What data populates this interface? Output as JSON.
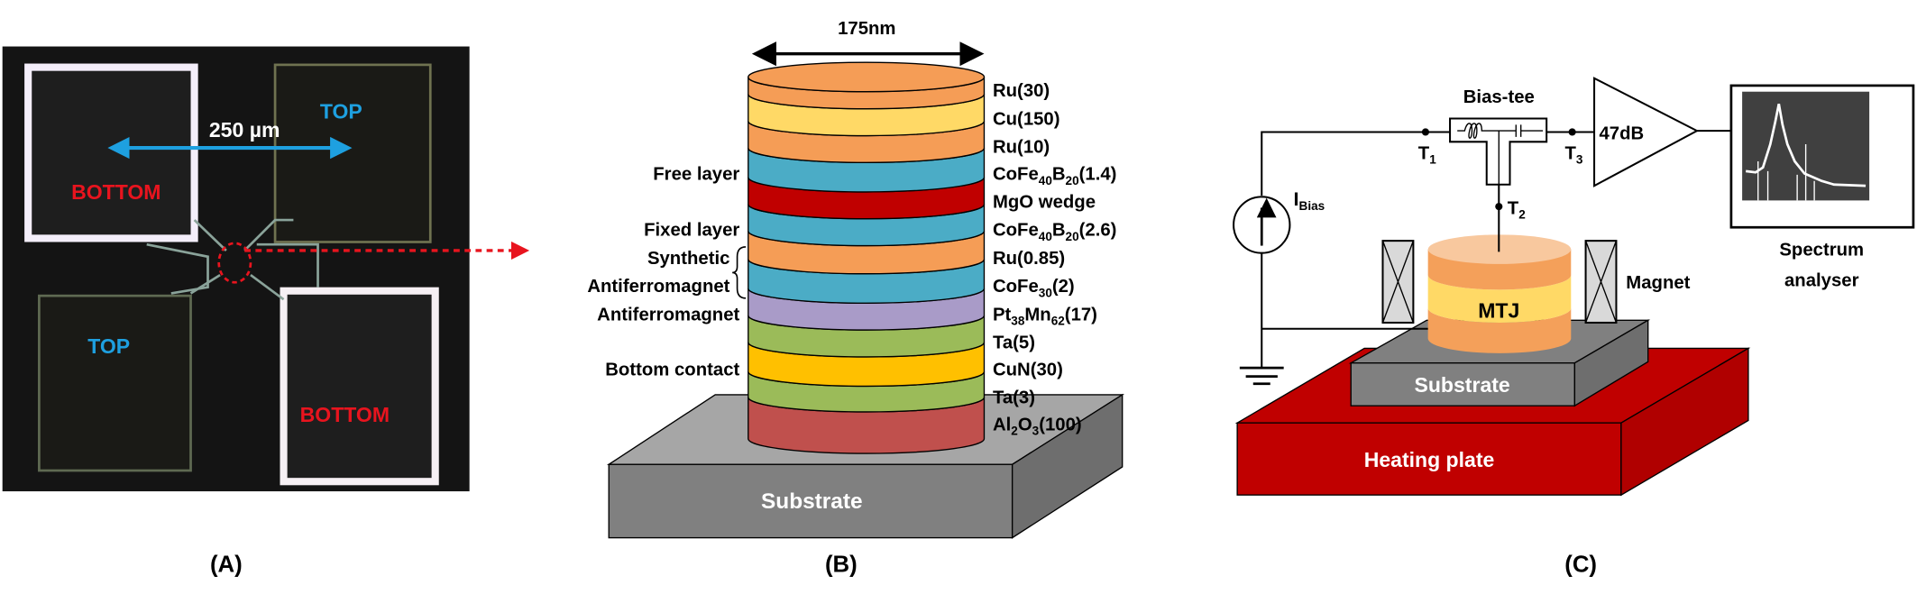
{
  "panel_a": {
    "caption": "(A)",
    "scale_label": "250 µm",
    "pads": {
      "top_right": "TOP",
      "top_left": "BOTTOM",
      "bottom_left": "TOP",
      "bottom_right": "BOTTOM"
    },
    "colors": {
      "top": "#1EA0E0",
      "bottom": "#E8141E",
      "scale_arrow": "#1EA0E0"
    }
  },
  "panel_b": {
    "caption": "(B)",
    "width_label": "175nm",
    "substrate_label": "Substrate",
    "layers": [
      {
        "segments": [
          {
            "t": "Ru(30)"
          }
        ],
        "color": "#F59D56"
      },
      {
        "segments": [
          {
            "t": "Cu(150)"
          }
        ],
        "color": "#FFD966"
      },
      {
        "segments": [
          {
            "t": "Ru(10)"
          }
        ],
        "color": "#F59D56"
      },
      {
        "segments": [
          {
            "t": "CoFe"
          },
          {
            "t": "40",
            "sub": true
          },
          {
            "t": "B"
          },
          {
            "t": "20",
            "sub": true
          },
          {
            "t": "(1.4)"
          }
        ],
        "color": "#4BACC6"
      },
      {
        "segments": [
          {
            "t": "MgO wedge"
          }
        ],
        "color": "#C00000"
      },
      {
        "segments": [
          {
            "t": "CoFe"
          },
          {
            "t": "40",
            "sub": true
          },
          {
            "t": "B"
          },
          {
            "t": "20",
            "sub": true
          },
          {
            "t": "(2.6)"
          }
        ],
        "color": "#4BACC6"
      },
      {
        "segments": [
          {
            "t": "Ru(0.85)"
          }
        ],
        "color": "#F59D56"
      },
      {
        "segments": [
          {
            "t": "CoFe"
          },
          {
            "t": "30",
            "sub": true
          },
          {
            "t": "(2)"
          }
        ],
        "color": "#4BACC6"
      },
      {
        "segments": [
          {
            "t": "Pt"
          },
          {
            "t": "38",
            "sub": true
          },
          {
            "t": "Mn"
          },
          {
            "t": "62",
            "sub": true
          },
          {
            "t": "(17)"
          }
        ],
        "color": "#A99BC8"
      },
      {
        "segments": [
          {
            "t": "Ta(5)"
          }
        ],
        "color": "#9BBB59"
      },
      {
        "segments": [
          {
            "t": "CuN(30)"
          }
        ],
        "color": "#FFC000"
      },
      {
        "segments": [
          {
            "t": "Ta(3)"
          }
        ],
        "color": "#9BBB59"
      },
      {
        "segments": [
          {
            "t": "Al"
          },
          {
            "t": "2",
            "sub": true
          },
          {
            "t": "O"
          },
          {
            "t": "3",
            "sub": true
          },
          {
            "t": "(100)"
          }
        ],
        "color": "#C0504D"
      }
    ],
    "side_labels": {
      "free": "Free layer",
      "fixed": "Fixed layer",
      "saf_1": "Synthetic",
      "saf_2": "Antiferromagnet",
      "afm": "Antiferromagnet",
      "bottom": "Bottom contact"
    }
  },
  "panel_c": {
    "caption": "(C)",
    "bias_tee": "Bias-tee",
    "amplifier": "47dB",
    "terminals": {
      "t1": "T",
      "t1_sub": "1",
      "t2": "T",
      "t2_sub": "2",
      "t3": "T",
      "t3_sub": "3"
    },
    "current": {
      "main": "I",
      "sub": "Bias"
    },
    "analyser_1": "Spectrum",
    "analyser_2": "analyser",
    "magnet": "Magnet",
    "mtj": "MTJ",
    "substrate": "Substrate",
    "heating": "Heating plate",
    "colors": {
      "heating": "#C00000",
      "substrate": "#808080",
      "mtj_orange": "#F4A460",
      "mtj_yellow": "#FFD966"
    }
  }
}
